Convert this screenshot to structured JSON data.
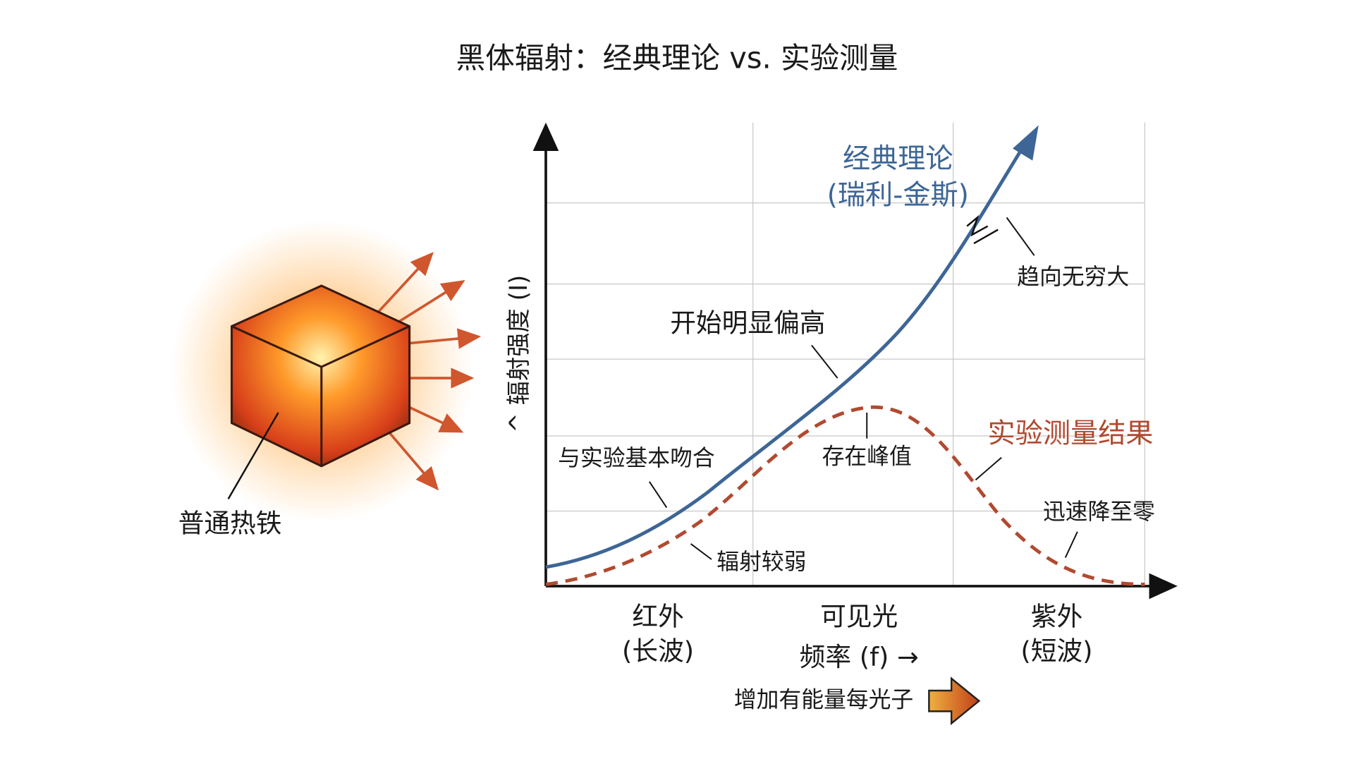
{
  "title": "黑体辐射：经典理论 vs. 实验测量",
  "object": {
    "label": "普通热铁"
  },
  "y_axis": {
    "label": "^ 辐射强度 (I)"
  },
  "classical": {
    "name": "经典理论",
    "subname": "(瑞利-金斯)",
    "annotations": [
      "趋向无穷大",
      "开始明显偏高",
      "与实验基本吻合"
    ]
  },
  "experimental": {
    "name": "实验测量结果",
    "annotations": [
      "存在峰值",
      "迅速降至零",
      "辐射较弱"
    ]
  },
  "regions": [
    {
      "name": "红外",
      "detail": "(长波)"
    },
    {
      "name": "可见光"
    },
    {
      "name": "紫外",
      "detail": "(短波)"
    }
  ],
  "x_axis": {
    "label": "频率 (f) →",
    "note": "增加有能量每光子"
  }
}
